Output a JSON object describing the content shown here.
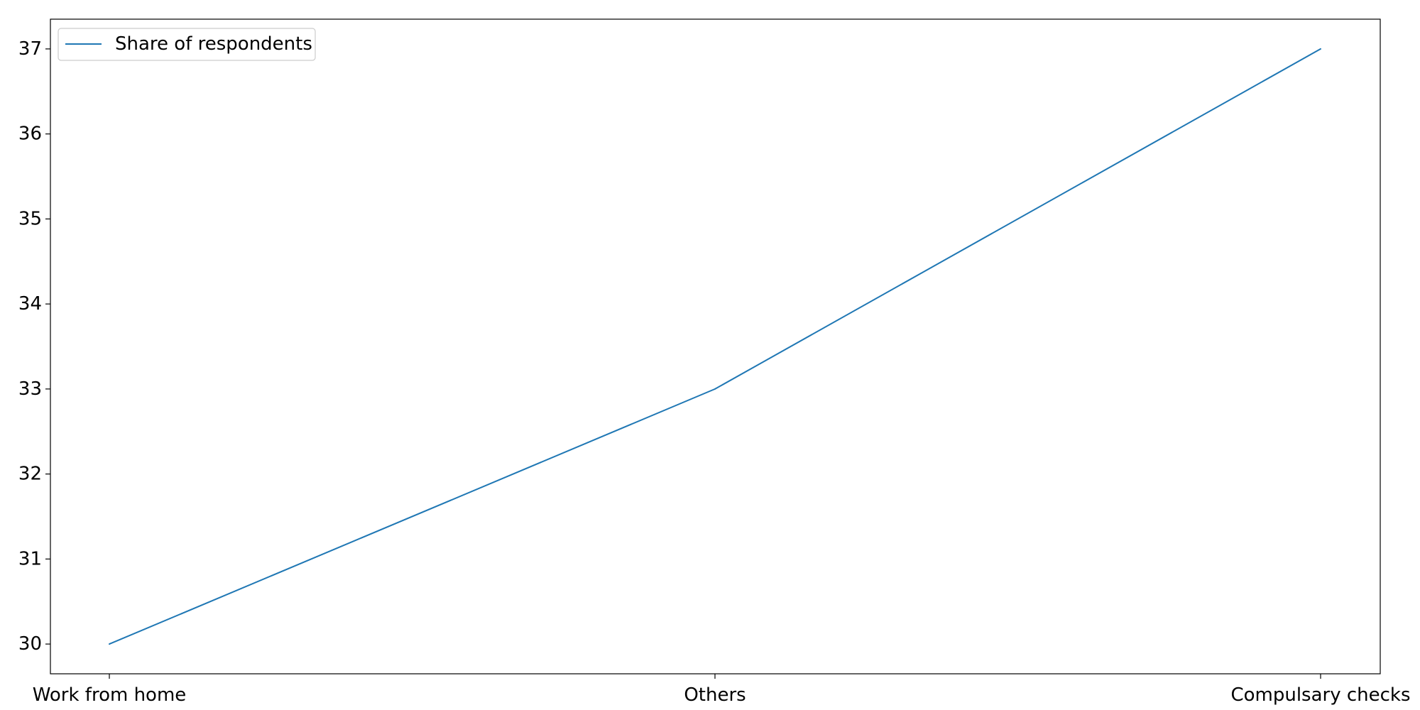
{
  "chart_data": {
    "type": "line",
    "title": "",
    "xlabel": "",
    "ylabel": "",
    "categories": [
      "Work from home",
      "Others",
      "Compulsary checks"
    ],
    "series": [
      {
        "name": "Share of respondents",
        "values": [
          30,
          33,
          37
        ],
        "color": "#1f77b4"
      }
    ],
    "ylim": [
      29.65,
      37.35
    ],
    "yticks": [
      30,
      31,
      32,
      33,
      34,
      35,
      36,
      37
    ],
    "grid": false,
    "legend_position": "top-left"
  }
}
